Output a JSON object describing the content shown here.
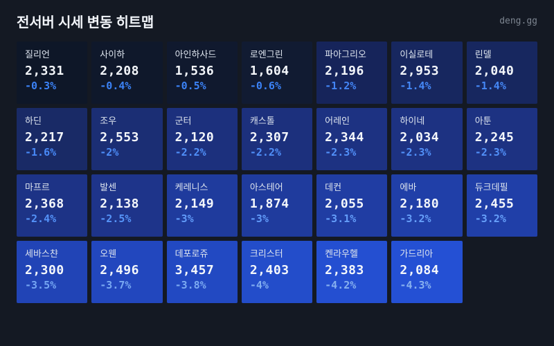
{
  "header": {
    "title": "전서버 시세 변동 히트맵",
    "brand": "deng.gg"
  },
  "colors": {
    "page_bg": "#141923",
    "title_text": "#f2f5fa",
    "brand_text": "#7d8590",
    "name_text": "#dde4ee",
    "price_text": "#f4f7fb",
    "accent_blue": "#3b82f6",
    "heat_scale_min": "#0e1728",
    "heat_scale_max": "#2450d4"
  },
  "heatmap": {
    "cells": [
      {
        "name": "질리언",
        "price": "2,331",
        "change": "-0.3%",
        "bg": "#0e1728",
        "fg": "#3b82f6"
      },
      {
        "name": "사이하",
        "price": "2,208",
        "change": "-0.4%",
        "bg": "#0f182b",
        "fg": "#3b82f6"
      },
      {
        "name": "아인하사드",
        "price": "1,536",
        "change": "-0.5%",
        "bg": "#10192e",
        "fg": "#3b82f6"
      },
      {
        "name": "로엔그린",
        "price": "1,604",
        "change": "-0.6%",
        "bg": "#111b32",
        "fg": "#3b82f6"
      },
      {
        "name": "파아그리오",
        "price": "2,196",
        "change": "-1.2%",
        "bg": "#16245a",
        "fg": "#4385f6"
      },
      {
        "name": "이실로테",
        "price": "2,953",
        "change": "-1.4%",
        "bg": "#17275f",
        "fg": "#4588f7"
      },
      {
        "name": "린델",
        "price": "2,040",
        "change": "-1.4%",
        "bg": "#17275f",
        "fg": "#4588f7"
      },
      {
        "name": "하딘",
        "price": "2,217",
        "change": "-1.6%",
        "bg": "#192a66",
        "fg": "#4889f7"
      },
      {
        "name": "조우",
        "price": "2,553",
        "change": "-2%",
        "bg": "#1b2e74",
        "fg": "#4d8df8"
      },
      {
        "name": "군터",
        "price": "2,120",
        "change": "-2.2%",
        "bg": "#1c307d",
        "fg": "#508ff8"
      },
      {
        "name": "캐스톨",
        "price": "2,307",
        "change": "-2.2%",
        "bg": "#1c307d",
        "fg": "#508ff8"
      },
      {
        "name": "어레인",
        "price": "2,344",
        "change": "-2.3%",
        "bg": "#1d3282",
        "fg": "#5290f8"
      },
      {
        "name": "하이네",
        "price": "2,034",
        "change": "-2.3%",
        "bg": "#1d3282",
        "fg": "#5290f8"
      },
      {
        "name": "아툰",
        "price": "2,245",
        "change": "-2.3%",
        "bg": "#1d3282",
        "fg": "#5290f8"
      },
      {
        "name": "마프르",
        "price": "2,368",
        "change": "-2.4%",
        "bg": "#1d3386",
        "fg": "#5492f8"
      },
      {
        "name": "발센",
        "price": "2,138",
        "change": "-2.5%",
        "bg": "#1e348a",
        "fg": "#5694f8"
      },
      {
        "name": "케레니스",
        "price": "2,149",
        "change": "-3%",
        "bg": "#1f3b9d",
        "fg": "#619bf9"
      },
      {
        "name": "아스테어",
        "price": "1,874",
        "change": "-3%",
        "bg": "#1f3b9d",
        "fg": "#619bf9"
      },
      {
        "name": "데컨",
        "price": "2,055",
        "change": "-3.1%",
        "bg": "#203da3",
        "fg": "#649df9"
      },
      {
        "name": "에바",
        "price": "2,180",
        "change": "-3.2%",
        "bg": "#203fa8",
        "fg": "#669ff9"
      },
      {
        "name": "듀크데필",
        "price": "2,455",
        "change": "-3.2%",
        "bg": "#203fa8",
        "fg": "#669ff9"
      },
      {
        "name": "세바스챤",
        "price": "2,300",
        "change": "-3.5%",
        "bg": "#2144b6",
        "fg": "#74a5f2"
      },
      {
        "name": "오웬",
        "price": "2,496",
        "change": "-3.7%",
        "bg": "#2247be",
        "fg": "#79a8f1"
      },
      {
        "name": "데포로쥬",
        "price": "3,457",
        "change": "-3.8%",
        "bg": "#2249c2",
        "fg": "#7caaf1"
      },
      {
        "name": "크리스터",
        "price": "2,403",
        "change": "-4%",
        "bg": "#234dca",
        "fg": "#81adf0"
      },
      {
        "name": "켄라우헬",
        "price": "2,383",
        "change": "-4.2%",
        "bg": "#244fd1",
        "fg": "#86b0ef"
      },
      {
        "name": "가드리아",
        "price": "2,084",
        "change": "-4.3%",
        "bg": "#2450d4",
        "fg": "#88b1ef"
      }
    ]
  },
  "chart_data": {
    "type": "heatmap",
    "title": "전서버 시세 변동 히트맵",
    "layout": {
      "columns": 7,
      "rows": 4,
      "legend_position": "none",
      "value_range_pct": [
        -4.3,
        -0.3
      ]
    },
    "entries": [
      {
        "name": "질리언",
        "price": 2331,
        "change_pct": -0.3
      },
      {
        "name": "사이하",
        "price": 2208,
        "change_pct": -0.4
      },
      {
        "name": "아인하사드",
        "price": 1536,
        "change_pct": -0.5
      },
      {
        "name": "로엔그린",
        "price": 1604,
        "change_pct": -0.6
      },
      {
        "name": "파아그리오",
        "price": 2196,
        "change_pct": -1.2
      },
      {
        "name": "이실로테",
        "price": 2953,
        "change_pct": -1.4
      },
      {
        "name": "린델",
        "price": 2040,
        "change_pct": -1.4
      },
      {
        "name": "하딘",
        "price": 2217,
        "change_pct": -1.6
      },
      {
        "name": "조우",
        "price": 2553,
        "change_pct": -2.0
      },
      {
        "name": "군터",
        "price": 2120,
        "change_pct": -2.2
      },
      {
        "name": "캐스톨",
        "price": 2307,
        "change_pct": -2.2
      },
      {
        "name": "어레인",
        "price": 2344,
        "change_pct": -2.3
      },
      {
        "name": "하이네",
        "price": 2034,
        "change_pct": -2.3
      },
      {
        "name": "아툰",
        "price": 2245,
        "change_pct": -2.3
      },
      {
        "name": "마프르",
        "price": 2368,
        "change_pct": -2.4
      },
      {
        "name": "발센",
        "price": 2138,
        "change_pct": -2.5
      },
      {
        "name": "케레니스",
        "price": 2149,
        "change_pct": -3.0
      },
      {
        "name": "아스테어",
        "price": 1874,
        "change_pct": -3.0
      },
      {
        "name": "데컨",
        "price": 2055,
        "change_pct": -3.1
      },
      {
        "name": "에바",
        "price": 2180,
        "change_pct": -3.2
      },
      {
        "name": "듀크데필",
        "price": 2455,
        "change_pct": -3.2
      },
      {
        "name": "세바스챤",
        "price": 2300,
        "change_pct": -3.5
      },
      {
        "name": "오웬",
        "price": 2496,
        "change_pct": -3.7
      },
      {
        "name": "데포로쥬",
        "price": 3457,
        "change_pct": -3.8
      },
      {
        "name": "크리스터",
        "price": 2403,
        "change_pct": -4.0
      },
      {
        "name": "켄라우헬",
        "price": 2383,
        "change_pct": -4.2
      },
      {
        "name": "가드리아",
        "price": 2084,
        "change_pct": -4.3
      }
    ]
  }
}
